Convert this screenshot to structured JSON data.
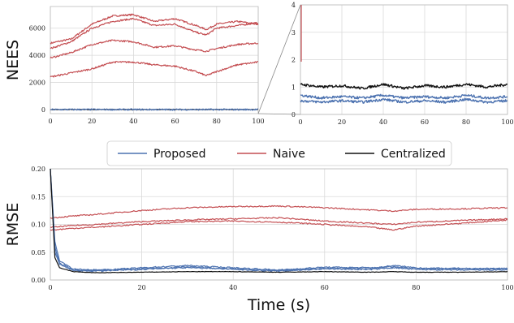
{
  "colors": {
    "proposed": "#4c72b0",
    "naive": "#c44e52",
    "centralized": "#111111",
    "grid": "#d9d9d9",
    "zoom_connector": "#888888"
  },
  "legend": {
    "placement": "center, between top and bottom panels",
    "entries": [
      {
        "label": "Proposed",
        "color_key": "proposed"
      },
      {
        "label": "Naive",
        "color_key": "naive"
      },
      {
        "label": "Centralized",
        "color_key": "centralized"
      }
    ]
  },
  "chart_data": [
    {
      "id": "nees-full",
      "type": "line",
      "ylabel": "NEES",
      "xlabel": "",
      "xlim": [
        0,
        100
      ],
      "ylim": [
        -300,
        7600
      ],
      "xticks": [
        0,
        20,
        40,
        60,
        80,
        100
      ],
      "yticks": [
        0,
        2000,
        4000,
        6000
      ],
      "grid": true,
      "x": [
        0,
        10,
        20,
        30,
        40,
        50,
        60,
        70,
        75,
        80,
        90,
        100
      ],
      "series": [
        {
          "group": "naive",
          "values": [
            4900,
            5200,
            6300,
            6900,
            7000,
            6500,
            6700,
            6200,
            5900,
            6300,
            6500,
            6300
          ]
        },
        {
          "group": "naive",
          "values": [
            4500,
            5000,
            6000,
            6500,
            6700,
            6200,
            6300,
            5700,
            5500,
            6000,
            6200,
            6400
          ]
        },
        {
          "group": "naive",
          "values": [
            3800,
            4200,
            4800,
            5100,
            5000,
            4600,
            4700,
            4400,
            4300,
            4500,
            4800,
            4900
          ]
        },
        {
          "group": "naive",
          "values": [
            2400,
            2700,
            3000,
            3500,
            3500,
            3300,
            3200,
            2800,
            2500,
            2800,
            3300,
            3500
          ]
        },
        {
          "group": "centralized",
          "values": [
            1,
            1,
            1,
            1,
            1,
            1,
            1,
            1,
            1,
            1,
            1,
            1
          ]
        },
        {
          "group": "proposed",
          "values": [
            0.5,
            0.5,
            0.5,
            0.5,
            0.5,
            0.5,
            0.5,
            0.5,
            0.5,
            0.5,
            0.5,
            0.5
          ]
        }
      ]
    },
    {
      "id": "nees-zoom",
      "type": "line",
      "xlabel": "",
      "ylabel": "",
      "xlim": [
        0,
        100
      ],
      "ylim": [
        0,
        4
      ],
      "xticks": [
        0,
        20,
        40,
        60,
        80,
        100
      ],
      "yticks": [
        0,
        1,
        2,
        3,
        4
      ],
      "grid": true,
      "x": [
        0,
        10,
        20,
        30,
        40,
        50,
        60,
        70,
        80,
        90,
        100
      ],
      "series": [
        {
          "group": "centralized",
          "values": [
            1.1,
            1.0,
            1.05,
            0.95,
            1.1,
            0.95,
            1.05,
            1.0,
            1.1,
            1.0,
            1.1
          ]
        },
        {
          "group": "proposed",
          "values": [
            0.7,
            0.6,
            0.65,
            0.6,
            0.7,
            0.6,
            0.65,
            0.6,
            0.7,
            0.6,
            0.65
          ]
        },
        {
          "group": "proposed",
          "values": [
            0.5,
            0.45,
            0.5,
            0.45,
            0.55,
            0.45,
            0.5,
            0.45,
            0.55,
            0.45,
            0.5
          ]
        }
      ]
    },
    {
      "id": "rmse",
      "type": "line",
      "xlabel": "Time (s)",
      "ylabel": "RMSE",
      "xlim": [
        0,
        100
      ],
      "ylim": [
        0,
        0.2
      ],
      "xticks": [
        0,
        20,
        40,
        60,
        80,
        100
      ],
      "yticks": [
        0.0,
        0.05,
        0.1,
        0.15,
        0.2
      ],
      "ytick_labels": [
        "0.00",
        "0.05",
        "0.10",
        "0.15",
        "0.20"
      ],
      "grid": true,
      "x": [
        0,
        1,
        2,
        5,
        10,
        20,
        30,
        40,
        50,
        60,
        70,
        75,
        80,
        90,
        100
      ],
      "series": [
        {
          "group": "naive",
          "values": [
            0.112,
            0.112,
            0.113,
            0.115,
            0.118,
            0.125,
            0.13,
            0.132,
            0.133,
            0.13,
            0.126,
            0.124,
            0.127,
            0.128,
            0.13
          ]
        },
        {
          "group": "naive",
          "values": [
            0.095,
            0.095,
            0.096,
            0.098,
            0.1,
            0.105,
            0.108,
            0.11,
            0.112,
            0.106,
            0.102,
            0.1,
            0.104,
            0.107,
            0.11
          ]
        },
        {
          "group": "naive",
          "values": [
            0.09,
            0.09,
            0.091,
            0.093,
            0.095,
            0.1,
            0.105,
            0.106,
            0.104,
            0.1,
            0.095,
            0.09,
            0.097,
            0.102,
            0.108
          ]
        },
        {
          "group": "proposed",
          "values": [
            0.2,
            0.07,
            0.035,
            0.02,
            0.018,
            0.02,
            0.022,
            0.02,
            0.017,
            0.021,
            0.02,
            0.026,
            0.022,
            0.02,
            0.021
          ]
        },
        {
          "group": "proposed",
          "values": [
            0.2,
            0.06,
            0.03,
            0.018,
            0.017,
            0.022,
            0.026,
            0.022,
            0.018,
            0.023,
            0.022,
            0.024,
            0.02,
            0.021,
            0.02
          ]
        },
        {
          "group": "proposed",
          "values": [
            0.2,
            0.05,
            0.028,
            0.017,
            0.016,
            0.019,
            0.024,
            0.019,
            0.016,
            0.02,
            0.019,
            0.022,
            0.019,
            0.018,
            0.018
          ]
        },
        {
          "group": "centralized",
          "values": [
            0.2,
            0.04,
            0.022,
            0.015,
            0.013,
            0.014,
            0.015,
            0.015,
            0.014,
            0.015,
            0.014,
            0.015,
            0.014,
            0.014,
            0.015
          ]
        }
      ]
    }
  ]
}
